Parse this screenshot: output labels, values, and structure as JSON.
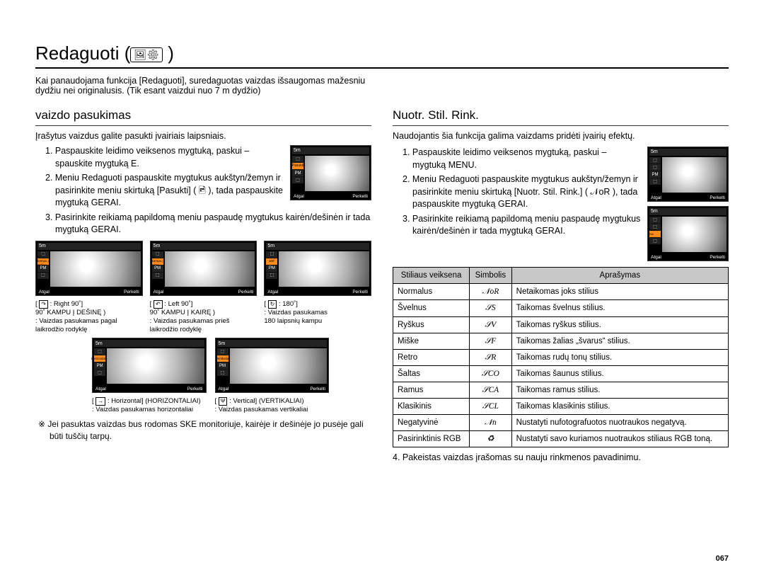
{
  "page": {
    "title": "Redaguoti (",
    "title_icon": "🖼⚙",
    "title_close": " )",
    "pagenum": "067"
  },
  "intro": "Kai panaudojama funkcija [Redaguoti], suredaguotas vaizdas išsaugomas mažesniu dydžiu nei originalusis. (Tik esant vaizdui nuo 7 m dydžio)",
  "left": {
    "section": "vaizdo pasukimas",
    "lead": "Įrašytus vaizdus galite pasukti įvairiais laipsniais.",
    "steps": [
      "1. Paspauskite leidimo veiksenos mygtuką, paskui – spauskite mygtuką E.",
      "2. Meniu Redaguoti paspauskite mygtukus aukštyn/žemyn ir pasirinkite meniu skirtuką [Pasukti] ( 🖻 ), tada paspauskite mygtuką GERAI.",
      "3. Pasirinkite reikiamą papildomą meniu paspaudę mygtukus kairėn/dešinėn ir tada mygtuką GERAI."
    ],
    "thumb_top": {
      "icon": "5m",
      "hl": "Pasukti",
      "back": "Atgal",
      "move": "Perkelti"
    },
    "row1": [
      {
        "hl": "90˚ kampu į dešinę",
        "back": "Atgal",
        "move": "Perkelti",
        "cap_icon": "↷",
        "cap_label": ": Right 90˚]",
        "cap_desc1": "90˚ KAMPU Į DEŠINĘ )",
        "cap_desc2": ": Vaizdas pasukamas pagal laikrodžio rodyklę"
      },
      {
        "hl": "90˚ kampu į kairę",
        "back": "Atgal",
        "move": "Perkelti",
        "cap_icon": "↶",
        "cap_label": ": Left 90˚]",
        "cap_desc1": "90˚ KAMPU Į KAIRĘ )",
        "cap_desc2": ": Vaizdas pasukamas prieš laikrodžio rodyklę"
      },
      {
        "hl": "180˚",
        "back": "Atgal",
        "move": "Perkelti",
        "cap_icon": "↻",
        "cap_label": ": 180˚]",
        "cap_desc1": ": Vaizdas pasukamas",
        "cap_desc2": "  180 laipsnių kampu"
      }
    ],
    "row2": [
      {
        "hl": "Horizontaliai",
        "back": "Atgal",
        "move": "Perkelti",
        "cap_icon": "→",
        "cap_label": ": Horizontal] (HORIZONTALIAI)",
        "cap_desc": ": Vaizdas pasukamas horizontaliai"
      },
      {
        "hl": "Vertikaliai",
        "back": "Atgal",
        "move": "Perkelti",
        "cap_icon": "Ψ",
        "cap_label": ": Vertical] (VERTIKALIAI)",
        "cap_desc": ": Vaizdas pasukamas vertikaliai"
      }
    ],
    "note": "※ Jei pasuktas vaizdas bus rodomas SKE monitoriuje, kairėje ir dešinėje jo pusėje gali būti tuščių tarpų."
  },
  "right": {
    "section": "Nuotr. Stil. Rink.",
    "lead": "Naudojantis šia funkcija galima vaizdams pridėti įvairių efektų.",
    "steps": [
      "1. Paspauskite leidimo veiksenos mygtuką, paskui – mygtuką MENU.",
      "2. Meniu Redaguoti paspauskite mygtukus aukštyn/žemyn ir pasirinkite meniu skirtuką [Nuotr. Stil. Rink.] ( 𝒩oR ), tada paspauskite mygtuką GERAI.",
      "3. Pasirinkite reikiamą papildomą meniu paspaudę mygtukus kairėn/dešinėn ir tada mygtuką GERAI."
    ],
    "thumb_top": {
      "icon": "5m",
      "back": "Atgal",
      "move": "Perkelti"
    },
    "thumb_bot": {
      "icon": "5m",
      "hl": "Nuotr. Stil. Rink.",
      "back": "Atgal",
      "move": "Perkelti"
    },
    "table": {
      "headers": [
        "Stiliaus veiksena",
        "Simbolis",
        "Aprašymas"
      ],
      "rows": [
        [
          "Normalus",
          "𝒩oR",
          "Netaikomas joks stilius"
        ],
        [
          "Švelnus",
          "𝒮S",
          "Taikomas švelnus stilius."
        ],
        [
          "Ryškus",
          "𝒮V",
          "Taikomas ryškus stilius."
        ],
        [
          "Miške",
          "𝒮F",
          "Taikomas žalias „švarus“ stilius."
        ],
        [
          "Retro",
          "𝒮R",
          "Taikomas rudų tonų stilius."
        ],
        [
          "Šaltas",
          "𝒮CO",
          "Taikomas šaunus stilius."
        ],
        [
          "Ramus",
          "𝒮CA",
          "Taikomas ramus stilius."
        ],
        [
          "Klasikinis",
          "𝒮CL",
          "Taikomas klasikinis stilius."
        ],
        [
          "Negatyvinė",
          "𝒩n",
          "Nustatyti nufotografuotos nuotraukos negatyvą."
        ],
        [
          "Pasirinktinis RGB",
          "♻",
          "Nustatyti savo kuriamos nuotraukos stiliaus RGB toną."
        ]
      ]
    },
    "step4": "4. Pakeistas vaizdas įrašomas su nauju rinkmenos pavadinimu."
  }
}
